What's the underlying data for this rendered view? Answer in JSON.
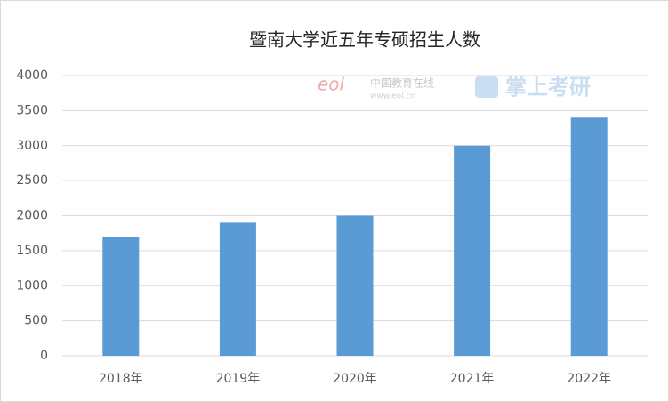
{
  "chart_data": {
    "type": "bar",
    "title": "暨南大学近五年专硕招生人数",
    "categories": [
      "2018年",
      "2019年",
      "2020年",
      "2021年",
      "2022年"
    ],
    "values": [
      1700,
      1900,
      2000,
      3000,
      3400
    ],
    "color": "#5b9bd5",
    "ylim": [
      0,
      4000
    ],
    "yticks": [
      0,
      500,
      1000,
      1500,
      2000,
      2500,
      3000,
      3500,
      4000
    ],
    "grid": true,
    "watermarks": [
      "eol",
      "中国教育在线",
      "www.eol.cn",
      "掌上考研"
    ]
  }
}
